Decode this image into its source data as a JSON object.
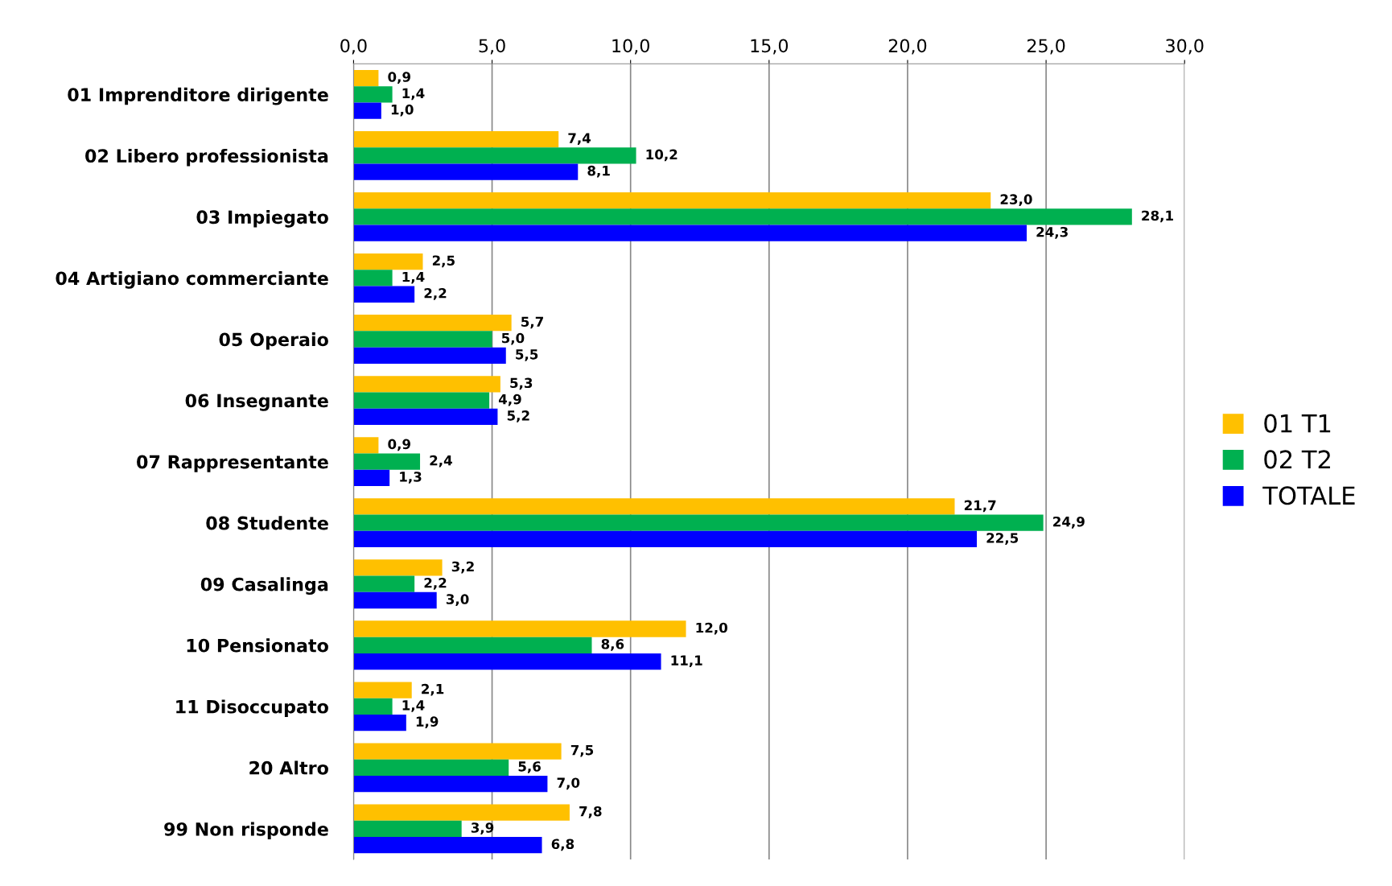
{
  "chart_data": {
    "type": "bar",
    "orientation": "horizontal",
    "categories": [
      "01 Imprenditore dirigente",
      "02 Libero professionista",
      "03 Impiegato",
      "04 Artigiano commerciante",
      "05 Operaio",
      "06 Insegnante",
      "07 Rappresentante",
      "08 Studente",
      "09 Casalinga",
      "10 Pensionato",
      "11 Disoccupato",
      "20 Altro",
      "99 Non risponde"
    ],
    "series": [
      {
        "name": "01 T1",
        "color": "#ffc000",
        "values": [
          0.9,
          7.4,
          23.0,
          2.5,
          5.7,
          5.3,
          0.9,
          21.7,
          3.2,
          12.0,
          2.1,
          7.5,
          7.8
        ],
        "value_labels": [
          "0,9",
          "7,4",
          "23,0",
          "2,5",
          "5,7",
          "5,3",
          "0,9",
          "21,7",
          "3,2",
          "12,0",
          "2,1",
          "7,5",
          "7,8"
        ]
      },
      {
        "name": "02 T2",
        "color": "#00b050",
        "values": [
          1.4,
          10.2,
          28.1,
          1.4,
          5.0,
          4.9,
          2.4,
          24.9,
          2.2,
          8.6,
          1.4,
          5.6,
          3.9
        ],
        "value_labels": [
          "1,4",
          "10,2",
          "28,1",
          "1,4",
          "5,0",
          "4,9",
          "2,4",
          "24,9",
          "2,2",
          "8,6",
          "1,4",
          "5,6",
          "3,9"
        ]
      },
      {
        "name": "TOTALE",
        "color": "#0000ff",
        "values": [
          1.0,
          8.1,
          24.3,
          2.2,
          5.5,
          5.2,
          1.3,
          22.5,
          3.0,
          11.1,
          1.9,
          7.0,
          6.8
        ],
        "value_labels": [
          "1,0",
          "8,1",
          "24,3",
          "2,2",
          "5,5",
          "5,2",
          "1,3",
          "22,5",
          "3,0",
          "11,1",
          "1,9",
          "7,0",
          "6,8"
        ]
      }
    ],
    "xlim": [
      0,
      30
    ],
    "xticks": [
      {
        "value": 0,
        "label": "0,0"
      },
      {
        "value": 5,
        "label": "5,0"
      },
      {
        "value": 10,
        "label": "10,0"
      },
      {
        "value": 15,
        "label": "15,0"
      },
      {
        "value": 20,
        "label": "20,0"
      },
      {
        "value": 25,
        "label": "25,0"
      },
      {
        "value": 30,
        "label": "30,0"
      }
    ],
    "grid": "x",
    "legend": "right"
  }
}
